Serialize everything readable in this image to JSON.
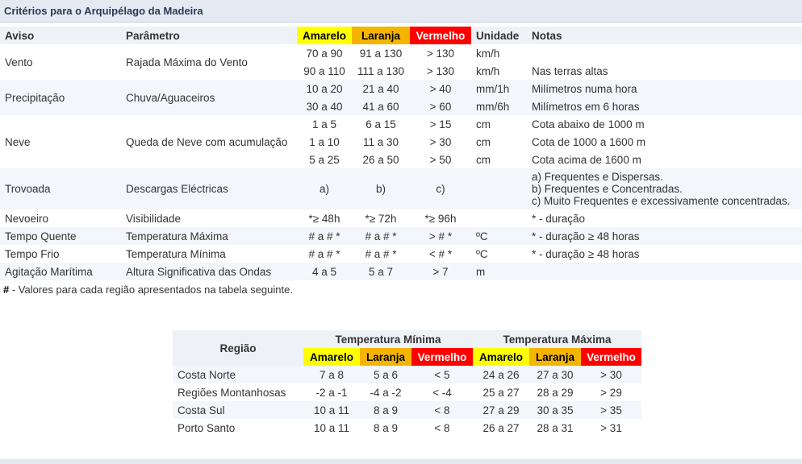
{
  "page_title": "Critérios para o Arquipélago da Madeira",
  "main_table": {
    "headers": {
      "aviso": "Aviso",
      "parametro": "Parâmetro",
      "amarelo": "Amarelo",
      "laranja": "Laranja",
      "vermelho": "Vermelho",
      "unidade": "Unidade",
      "notas": "Notas"
    },
    "rows": {
      "vento": {
        "aviso": "Vento",
        "parametro": "Rajada Máxima do Vento",
        "r1": {
          "amarelo": "70 a 90",
          "laranja": "91 a 130",
          "vermelho": "> 130",
          "unidade": "km/h",
          "notas": ""
        },
        "r2": {
          "amarelo": "90 a 110",
          "laranja": "111 a 130",
          "vermelho": "> 130",
          "unidade": "km/h",
          "notas": "Nas terras altas"
        }
      },
      "precipitacao": {
        "aviso": "Precipitação",
        "parametro": "Chuva/Aguaceiros",
        "r1": {
          "amarelo": "10 a 20",
          "laranja": "21 a 40",
          "vermelho": "> 40",
          "unidade": "mm/1h",
          "notas": "Milímetros numa hora"
        },
        "r2": {
          "amarelo": "30 a 40",
          "laranja": "41 a 60",
          "vermelho": "> 60",
          "unidade": "mm/6h",
          "notas": "Milímetros em 6 horas"
        }
      },
      "neve": {
        "aviso": "Neve",
        "parametro": "Queda de Neve com acumulação",
        "r1": {
          "amarelo": "1 a 5",
          "laranja": "6 a 15",
          "vermelho": "> 15",
          "unidade": "cm",
          "notas": "Cota abaixo de 1000 m"
        },
        "r2": {
          "amarelo": "1 a 10",
          "laranja": "11 a 30",
          "vermelho": "> 30",
          "unidade": "cm",
          "notas": "Cota de 1000 a 1600 m"
        },
        "r3": {
          "amarelo": "5 a 25",
          "laranja": "26 a 50",
          "vermelho": "> 50",
          "unidade": "cm",
          "notas": "Cota acima de 1600 m"
        }
      },
      "trovoada": {
        "aviso": "Trovoada",
        "parametro": "Descargas Eléctricas",
        "amarelo": "a)",
        "laranja": "b)",
        "vermelho": "c)",
        "unidade": "",
        "notas_a": "a) Frequentes e Dispersas.",
        "notas_b": "b) Frequentes e Concentradas.",
        "notas_c": "c) Muito Frequentes e excessivamente concentradas."
      },
      "nevoeiro": {
        "aviso": "Nevoeiro",
        "parametro": "Visibilidade",
        "amarelo": "*≥ 48h",
        "laranja": "*≥ 72h",
        "vermelho": "*≥ 96h",
        "unidade": "",
        "notas": "* - duração"
      },
      "tempo_quente": {
        "aviso": "Tempo Quente",
        "parametro": "Temperatura Máxima",
        "amarelo": "# a # *",
        "laranja": "# a # *",
        "vermelho": "> # *",
        "unidade": "ºC",
        "notas": "* - duração ≥ 48 horas"
      },
      "tempo_frio": {
        "aviso": "Tempo Frio",
        "parametro": "Temperatura Mínima",
        "amarelo": "# a # *",
        "laranja": "# a # *",
        "vermelho": "< # *",
        "unidade": "ºC",
        "notas": "* - duração ≥ 48 horas"
      },
      "agitacao": {
        "aviso": "Agitação Marítima",
        "parametro": "Altura Significativa das Ondas",
        "amarelo": "4 a 5",
        "laranja": "5 a 7",
        "vermelho": "> 7",
        "unidade": "m",
        "notas": ""
      }
    }
  },
  "footnote": {
    "symbol": "#",
    "text": " - Valores para cada região apresentados na tabela seguinte."
  },
  "regions_table": {
    "header_regiao": "Região",
    "header_min": "Temperatura Mínima",
    "header_max": "Temperatura Máxima",
    "amarelo": "Amarelo",
    "laranja": "Laranja",
    "vermelho": "Vermelho",
    "rows": [
      {
        "regiao": "Costa Norte",
        "min_a": "7 a 8",
        "min_l": "5 a 6",
        "min_v": "< 5",
        "max_a": "24 a 26",
        "max_l": "27 a 30",
        "max_v": "> 30"
      },
      {
        "regiao": "Regiões Montanhosas",
        "min_a": "-2 a -1",
        "min_l": "-4 a -2",
        "min_v": "< -4",
        "max_a": "25 a 27",
        "max_l": "28 a 29",
        "max_v": "> 29"
      },
      {
        "regiao": "Costa Sul",
        "min_a": "10 a 11",
        "min_l": "8 a 9",
        "min_v": "< 8",
        "max_a": "27 a 29",
        "max_l": "30 a 35",
        "max_v": "> 35"
      },
      {
        "regiao": "Porto Santo",
        "min_a": "10 a 11",
        "min_l": "8 a 9",
        "min_v": "< 8",
        "max_a": "26 a 27",
        "max_l": "28 a 31",
        "max_v": "> 31"
      }
    ]
  },
  "colors": {
    "amarelo": "#ffff00",
    "laranja": "#f5b400",
    "vermelho": "#ff0000",
    "header_bg": "#e4e9f2"
  }
}
